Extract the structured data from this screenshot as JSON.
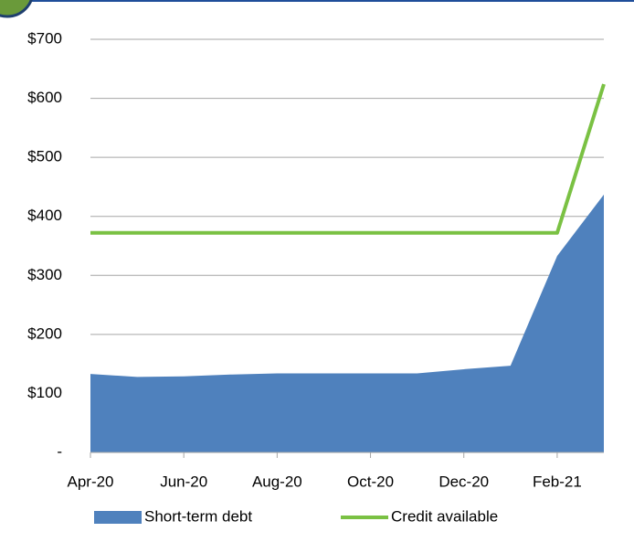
{
  "chart_data": {
    "type": "area",
    "categories": [
      "Apr-20",
      null,
      "Jun-20",
      null,
      "Aug-20",
      null,
      "Oct-20",
      null,
      "Dec-20",
      null,
      "Feb-21",
      null
    ],
    "series": [
      {
        "name": "Short-term debt",
        "type": "area",
        "color": "#4f81bd",
        "values": [
          133,
          128,
          129,
          132,
          134,
          134,
          134,
          134,
          141,
          147,
          333,
          437
        ]
      },
      {
        "name": "Credit available",
        "type": "line",
        "color": "#7ac143",
        "values": [
          372,
          372,
          372,
          372,
          372,
          372,
          372,
          372,
          372,
          372,
          372,
          624
        ]
      }
    ],
    "ylim": [
      0,
      700
    ],
    "yticks": [
      {
        "value": 0,
        "label": "-"
      },
      {
        "value": 100,
        "label": "$100"
      },
      {
        "value": 200,
        "label": "$200"
      },
      {
        "value": 300,
        "label": "$300"
      },
      {
        "value": 400,
        "label": "$400"
      },
      {
        "value": 500,
        "label": "$500"
      },
      {
        "value": 600,
        "label": "$600"
      },
      {
        "value": 700,
        "label": "$700"
      }
    ],
    "grid": true,
    "legend": "bottom"
  }
}
